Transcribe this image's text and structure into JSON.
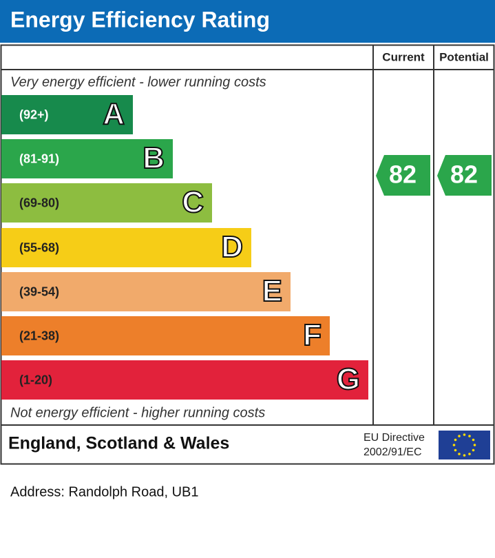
{
  "header": {
    "title": "Energy Efficiency Rating"
  },
  "columns": {
    "current": "Current",
    "potential": "Potential"
  },
  "top_note": "Very energy efficient - lower running costs",
  "bands": [
    {
      "range": "(92+)",
      "letter": "A",
      "color": "#178a4c",
      "text_color": "#ffffff"
    },
    {
      "range": "(81-91)",
      "letter": "B",
      "color": "#2ba64b",
      "text_color": "#ffffff"
    },
    {
      "range": "(69-80)",
      "letter": "C",
      "color": "#8dbd40",
      "text_color": "#222222"
    },
    {
      "range": "(55-68)",
      "letter": "D",
      "color": "#f6cd17",
      "text_color": "#222222"
    },
    {
      "range": "(39-54)",
      "letter": "E",
      "color": "#f1aa6b",
      "text_color": "#222222"
    },
    {
      "range": "(21-38)",
      "letter": "F",
      "color": "#ed7f2a",
      "text_color": "#222222"
    },
    {
      "range": "(1-20)",
      "letter": "G",
      "color": "#e2223b",
      "text_color": "#222222"
    }
  ],
  "bottom_note": "Not energy efficient - higher running costs",
  "current": {
    "value": 82,
    "color": "#2ba64b"
  },
  "potential": {
    "value": 82,
    "color": "#2ba64b"
  },
  "footer": {
    "region": "England, Scotland & Wales",
    "directive": [
      "EU Directive",
      "2002/91/EC"
    ]
  },
  "address": "Address: Randolph Road, UB1"
}
